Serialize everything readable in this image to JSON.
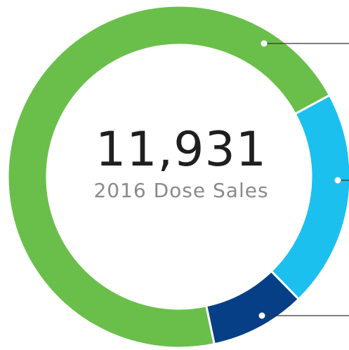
{
  "chart_data": {
    "type": "donut",
    "total_label": "11,931",
    "subtitle": "2016 Dose Sales",
    "series": [
      {
        "color": "#6abf4b",
        "values": [
          70.4
        ]
      },
      {
        "color": "#1cc0ef",
        "values": [
          20.6
        ]
      },
      {
        "color": "#063f85",
        "values": [
          9.0
        ]
      }
    ]
  }
}
